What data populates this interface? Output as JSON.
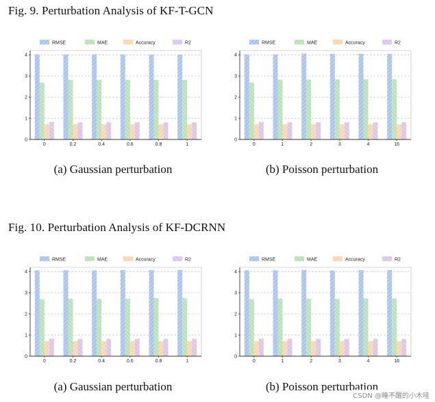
{
  "fig9": {
    "title": "Fig. 9.   Perturbation Analysis of KF-T-GCN",
    "captions": {
      "a": "(a) Gaussian perturbation",
      "b": "(b) Poisson perturbation"
    }
  },
  "fig10": {
    "title": "Fig. 10.   Perturbation Analysis of KF-DCRNN",
    "captions": {
      "a": "(a) Gaussian perturbation",
      "b": "(b) Poisson perturbation"
    }
  },
  "watermark": "CSDN @睡不醒的小木哇",
  "colors": {
    "rmse": "#a9c4ee",
    "mae": "#b9e2b5",
    "accuracy": "#fbd6b0",
    "r2": "#d9c6ea",
    "grid": "#c8c8c8",
    "axis": "#333333"
  },
  "chart_data": [
    {
      "id": "fig9-gaussian",
      "type": "bar",
      "title": "",
      "xlabel": "",
      "ylabel": "",
      "categories": [
        "0",
        "0.2",
        "0.4",
        "0.6",
        "0.8",
        "1"
      ],
      "ylim": [
        0,
        4.2
      ],
      "yticks": [
        "0",
        "1",
        "2",
        "3",
        "4"
      ],
      "legend": "top",
      "series": [
        {
          "name": "RMSE",
          "values": [
            4.02,
            4.02,
            4.02,
            4.02,
            4.01,
            4.01
          ]
        },
        {
          "name": "MAE",
          "values": [
            2.68,
            2.82,
            2.81,
            2.82,
            2.81,
            2.81
          ]
        },
        {
          "name": "Accuracy",
          "values": [
            0.72,
            0.72,
            0.72,
            0.72,
            0.72,
            0.72
          ]
        },
        {
          "name": "R2",
          "values": [
            0.83,
            0.81,
            0.82,
            0.81,
            0.81,
            0.81
          ]
        }
      ]
    },
    {
      "id": "fig9-poisson",
      "type": "bar",
      "title": "",
      "xlabel": "",
      "ylabel": "",
      "categories": [
        "0",
        "1",
        "2",
        "3",
        "4",
        "16"
      ],
      "ylim": [
        0,
        4.2
      ],
      "yticks": [
        "0",
        "1",
        "2",
        "3",
        "4"
      ],
      "legend": "top",
      "series": [
        {
          "name": "RMSE",
          "values": [
            4.02,
            4.02,
            4.06,
            4.05,
            4.05,
            4.05
          ]
        },
        {
          "name": "MAE",
          "values": [
            2.69,
            2.83,
            2.83,
            2.84,
            2.84,
            2.84
          ]
        },
        {
          "name": "Accuracy",
          "values": [
            0.72,
            0.72,
            0.72,
            0.71,
            0.72,
            0.71
          ]
        },
        {
          "name": "R2",
          "values": [
            0.83,
            0.81,
            0.81,
            0.81,
            0.81,
            0.81
          ]
        }
      ]
    },
    {
      "id": "fig10-gaussian",
      "type": "bar",
      "title": "",
      "xlabel": "",
      "ylabel": "",
      "categories": [
        "0",
        "0.2",
        "0.4",
        "0.6",
        "0.8",
        "1"
      ],
      "ylim": [
        0,
        4.2
      ],
      "yticks": [
        "0",
        "1",
        "2",
        "3",
        "4"
      ],
      "legend": "top",
      "series": [
        {
          "name": "RMSE",
          "values": [
            4.06,
            4.06,
            4.06,
            4.07,
            4.07,
            4.08
          ]
        },
        {
          "name": "MAE",
          "values": [
            2.69,
            2.71,
            2.71,
            2.71,
            2.75,
            2.74
          ]
        },
        {
          "name": "Accuracy",
          "values": [
            0.71,
            0.71,
            0.71,
            0.71,
            0.71,
            0.71
          ]
        },
        {
          "name": "R2",
          "values": [
            0.83,
            0.82,
            0.82,
            0.82,
            0.82,
            0.82
          ]
        }
      ]
    },
    {
      "id": "fig10-poisson",
      "type": "bar",
      "title": "",
      "xlabel": "",
      "ylabel": "",
      "categories": [
        "0",
        "1",
        "2",
        "3",
        "4",
        "16"
      ],
      "ylim": [
        0,
        4.2
      ],
      "yticks": [
        "0",
        "1",
        "2",
        "3",
        "4"
      ],
      "legend": "top",
      "series": [
        {
          "name": "RMSE",
          "values": [
            4.06,
            4.06,
            4.07,
            4.05,
            4.07,
            4.07
          ]
        },
        {
          "name": "MAE",
          "values": [
            2.7,
            2.72,
            2.72,
            2.71,
            2.73,
            2.73
          ]
        },
        {
          "name": "Accuracy",
          "values": [
            0.71,
            0.71,
            0.71,
            0.71,
            0.71,
            0.71
          ]
        },
        {
          "name": "R2",
          "values": [
            0.83,
            0.82,
            0.82,
            0.82,
            0.82,
            0.82
          ]
        }
      ]
    }
  ]
}
